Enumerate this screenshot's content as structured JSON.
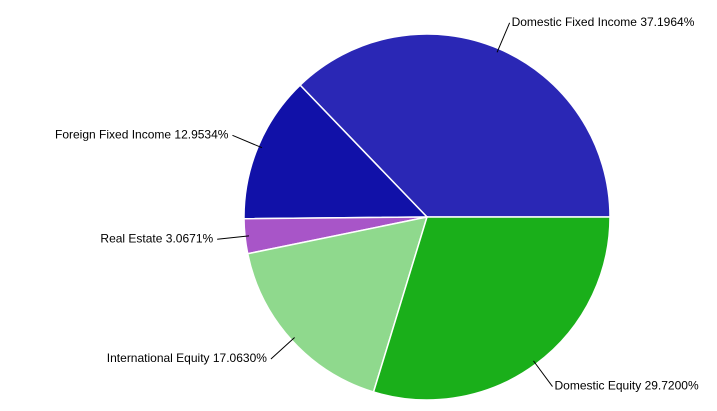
{
  "chart_data": {
    "type": "pie",
    "categories": [
      "Domestic Fixed Income",
      "Foreign Fixed Income",
      "Real Estate",
      "International Equity",
      "Domestic Equity"
    ],
    "values": [
      37.1964,
      12.9534,
      3.0671,
      17.063,
      29.72
    ],
    "value_labels": [
      "37.1964%",
      "12.9534%",
      "3.0671%",
      "17.0630%",
      "29.7200%"
    ],
    "colors": [
      "#2a27b5",
      "#1111a8",
      "#a855c8",
      "#8fd98d",
      "#1aaf1a"
    ]
  }
}
